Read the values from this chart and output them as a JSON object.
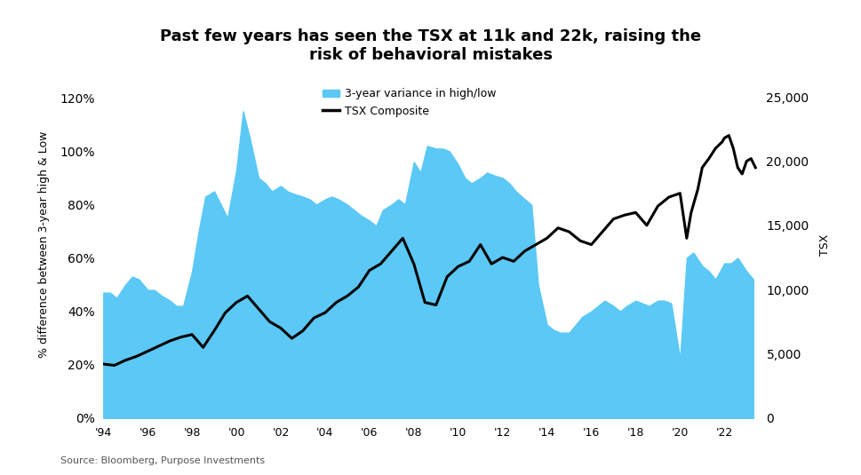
{
  "title": "Past few years has seen the TSX at 11k and 22k, raising the\nrisk of behavioral mistakes",
  "ylabel_left": "% difference between 3-year high & Low",
  "ylabel_right": "TSX",
  "source": "Source: Bloomberg, Purpose Investments",
  "legend_variance": "3-year variance in high/low",
  "legend_tsx": "TSX Composite",
  "area_color": "#5BC8F5",
  "line_color": "#000000",
  "background_color": "#ffffff",
  "xlim_start": 1994.0,
  "xlim_end": 2023.5,
  "ylim_left": [
    0,
    1.3
  ],
  "ylim_right": [
    0,
    27000
  ],
  "xtick_years": [
    1994,
    1996,
    1998,
    2000,
    2002,
    2004,
    2006,
    2008,
    2010,
    2012,
    2014,
    2016,
    2018,
    2020,
    2022
  ],
  "xtick_labels": [
    "'94",
    "'96",
    "'98",
    "'00",
    "'02",
    "'04",
    "'06",
    "'08",
    "'10",
    "'12",
    "'14",
    "'16",
    "'18",
    "'20",
    "'22"
  ],
  "variance_data": {
    "years": [
      1994.0,
      1994.3,
      1994.6,
      1995.0,
      1995.3,
      1995.6,
      1996.0,
      1996.3,
      1996.6,
      1997.0,
      1997.3,
      1997.6,
      1998.0,
      1998.3,
      1998.6,
      1999.0,
      1999.3,
      1999.6,
      2000.0,
      2000.3,
      2000.6,
      2001.0,
      2001.3,
      2001.6,
      2002.0,
      2002.3,
      2002.6,
      2003.0,
      2003.3,
      2003.6,
      2004.0,
      2004.3,
      2004.6,
      2005.0,
      2005.3,
      2005.6,
      2006.0,
      2006.3,
      2006.6,
      2007.0,
      2007.3,
      2007.6,
      2008.0,
      2008.3,
      2008.6,
      2009.0,
      2009.3,
      2009.6,
      2010.0,
      2010.3,
      2010.6,
      2011.0,
      2011.3,
      2011.6,
      2012.0,
      2012.3,
      2012.6,
      2013.0,
      2013.3,
      2013.6,
      2014.0,
      2014.3,
      2014.6,
      2015.0,
      2015.3,
      2015.6,
      2016.0,
      2016.3,
      2016.6,
      2017.0,
      2017.3,
      2017.6,
      2018.0,
      2018.3,
      2018.6,
      2019.0,
      2019.3,
      2019.6,
      2020.0,
      2020.3,
      2020.6,
      2021.0,
      2021.3,
      2021.6,
      2022.0,
      2022.3,
      2022.6,
      2023.0,
      2023.3
    ],
    "values": [
      0.47,
      0.47,
      0.45,
      0.5,
      0.53,
      0.52,
      0.48,
      0.48,
      0.46,
      0.44,
      0.42,
      0.42,
      0.55,
      0.7,
      0.83,
      0.85,
      0.8,
      0.75,
      0.93,
      1.15,
      1.05,
      0.9,
      0.88,
      0.85,
      0.87,
      0.85,
      0.84,
      0.83,
      0.82,
      0.8,
      0.82,
      0.83,
      0.82,
      0.8,
      0.78,
      0.76,
      0.74,
      0.72,
      0.78,
      0.8,
      0.82,
      0.8,
      0.96,
      0.92,
      1.02,
      1.01,
      1.01,
      1.0,
      0.95,
      0.9,
      0.88,
      0.9,
      0.92,
      0.91,
      0.9,
      0.88,
      0.85,
      0.82,
      0.8,
      0.5,
      0.35,
      0.33,
      0.32,
      0.32,
      0.35,
      0.38,
      0.4,
      0.42,
      0.44,
      0.42,
      0.4,
      0.42,
      0.44,
      0.43,
      0.42,
      0.44,
      0.44,
      0.43,
      0.22,
      0.6,
      0.62,
      0.57,
      0.55,
      0.52,
      0.58,
      0.58,
      0.6,
      0.55,
      0.52
    ]
  },
  "tsx_data": {
    "years": [
      1994.0,
      1994.5,
      1995.0,
      1995.5,
      1996.0,
      1996.5,
      1997.0,
      1997.5,
      1998.0,
      1998.5,
      1999.0,
      1999.5,
      2000.0,
      2000.5,
      2001.0,
      2001.5,
      2002.0,
      2002.5,
      2003.0,
      2003.5,
      2004.0,
      2004.5,
      2005.0,
      2005.5,
      2006.0,
      2006.5,
      2007.0,
      2007.5,
      2008.0,
      2008.5,
      2009.0,
      2009.5,
      2010.0,
      2010.5,
      2011.0,
      2011.5,
      2012.0,
      2012.5,
      2013.0,
      2013.5,
      2014.0,
      2014.5,
      2015.0,
      2015.5,
      2016.0,
      2016.5,
      2017.0,
      2017.5,
      2018.0,
      2018.5,
      2019.0,
      2019.5,
      2020.0,
      2020.3,
      2020.5,
      2020.8,
      2021.0,
      2021.3,
      2021.6,
      2021.9,
      2022.0,
      2022.2,
      2022.4,
      2022.6,
      2022.8,
      2023.0,
      2023.2,
      2023.4
    ],
    "values": [
      4200,
      4100,
      4500,
      4800,
      5200,
      5600,
      6000,
      6300,
      6500,
      5500,
      6800,
      8200,
      9000,
      9500,
      8500,
      7500,
      7000,
      6200,
      6800,
      7800,
      8200,
      9000,
      9500,
      10200,
      11500,
      12000,
      13000,
      14000,
      12000,
      9000,
      8800,
      11000,
      11800,
      12200,
      13500,
      12000,
      12500,
      12200,
      13000,
      13500,
      14000,
      14800,
      14500,
      13800,
      13500,
      14500,
      15500,
      15800,
      16000,
      15000,
      16500,
      17200,
      17500,
      14000,
      16000,
      17800,
      19500,
      20200,
      21000,
      21500,
      21800,
      22000,
      21000,
      19500,
      19000,
      20000,
      20200,
      19500
    ]
  }
}
